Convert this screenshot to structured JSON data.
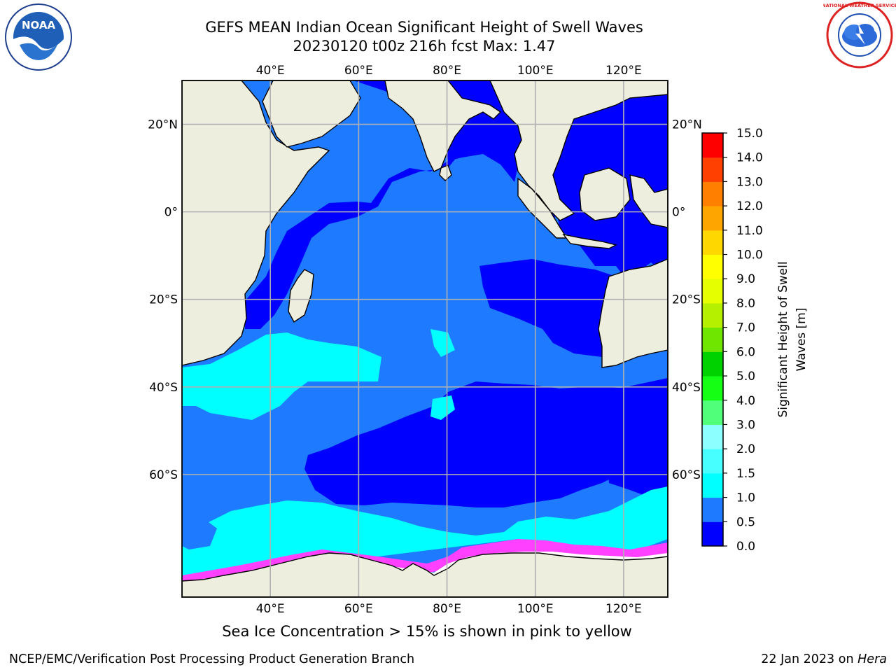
{
  "title": {
    "line1": "GEFS MEAN Indian Ocean Significant Height of Swell Waves",
    "line2": "20230120 t00z 216h fcst   Max: 1.47"
  },
  "caption": "Sea Ice Concentration > 15% is shown in pink to yellow",
  "footer": {
    "left": "NCEP/EMC/Verification Post Processing Product Generation Branch",
    "right_date": "22 Jan 2023 on",
    "right_host": "Hera"
  },
  "logos": {
    "noaa": {
      "icon": "noaa-logo",
      "text": "NOAA"
    },
    "nws": {
      "icon": "nws-logo",
      "text": "NATIONAL WEATHER SERVICE"
    }
  },
  "chart_data": {
    "type": "heatmap",
    "title": "GEFS MEAN Indian Ocean Significant Height of Swell Waves",
    "subtitle": "20230120 t00z 216h fcst   Max: 1.47",
    "xlim": [
      20,
      130
    ],
    "ylim": [
      -88,
      30
    ],
    "x_ticks": [
      {
        "value": 40,
        "label": "40°E"
      },
      {
        "value": 60,
        "label": "60°E"
      },
      {
        "value": 80,
        "label": "80°E"
      },
      {
        "value": 100,
        "label": "100°E"
      },
      {
        "value": 120,
        "label": "120°E"
      }
    ],
    "y_ticks": [
      {
        "value": 20,
        "label": "20°N"
      },
      {
        "value": 0,
        "label": "0°"
      },
      {
        "value": -20,
        "label": "20°S"
      },
      {
        "value": -40,
        "label": "40°S"
      },
      {
        "value": -60,
        "label": "60°S"
      }
    ],
    "grid": true,
    "colorbar": {
      "label": "Significant Height of Swell Waves [m]",
      "label_line1": "Significant Height of Swell",
      "label_line2": "Waves [m]",
      "ticks": [
        "0.0",
        "0.5",
        "1.0",
        "1.5",
        "2.0",
        "3.0",
        "4.0",
        "5.0",
        "6.0",
        "7.0",
        "8.0",
        "9.0",
        "10.0",
        "11.0",
        "12.0",
        "13.0",
        "14.0",
        "15.0"
      ],
      "colors": [
        "#0000ff",
        "#1e7bff",
        "#00ffff",
        "#47ffff",
        "#8cffff",
        "#50ff7a",
        "#14ff14",
        "#00d200",
        "#6ee600",
        "#b4f000",
        "#e6ff00",
        "#ffff00",
        "#ffd700",
        "#ffa500",
        "#ff8000",
        "#ff4000",
        "#ff0000"
      ]
    },
    "colors": {
      "land": "#eeeedf",
      "ocean_0_05": "#0000ff",
      "ocean_05_10": "#1e7bff",
      "ocean_10_15": "#00ffff",
      "ice": "#ffffff",
      "ice_edge": "#ff40ff"
    }
  }
}
